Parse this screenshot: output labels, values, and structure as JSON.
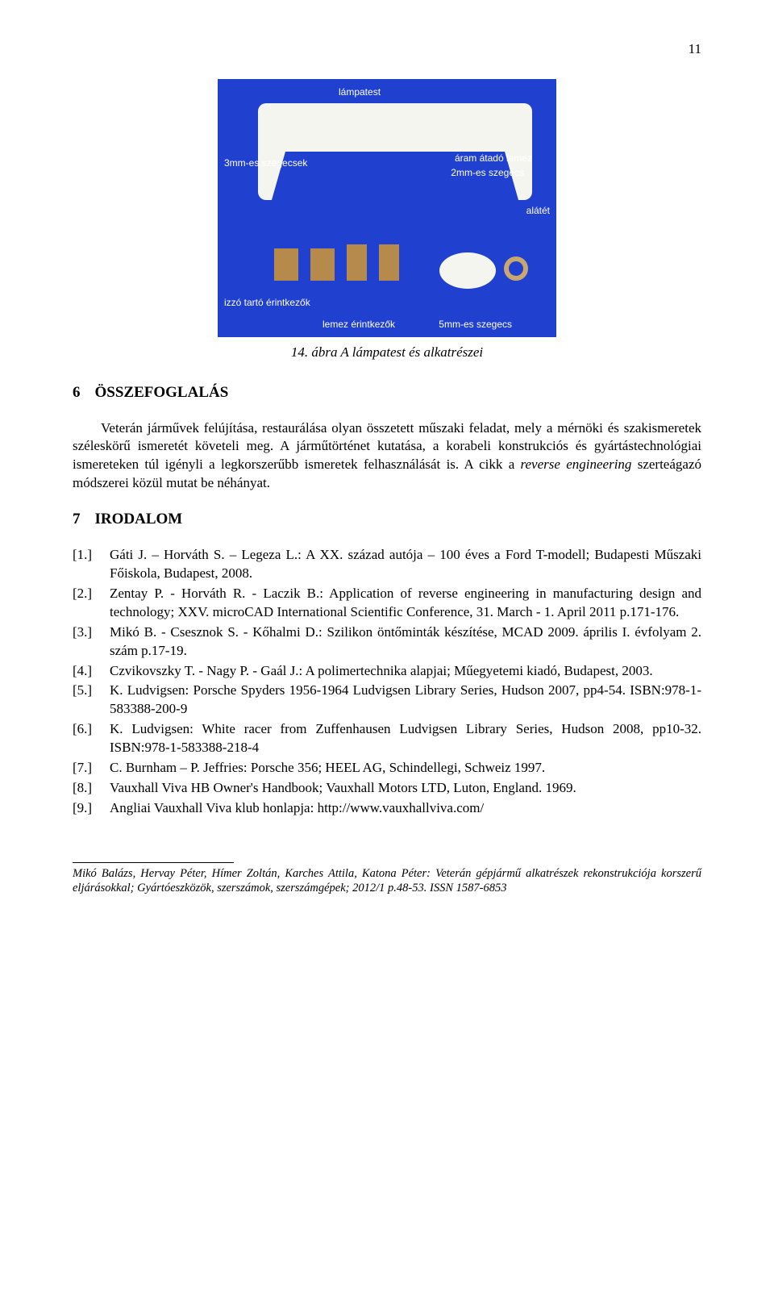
{
  "page_number": "11",
  "figure": {
    "labels": {
      "lampatest": "lámpatest",
      "szegecsek_3mm": "3mm-es szegecsek",
      "aram_atado": "áram átadó lemez",
      "szegecs_2mm": "2mm-es szegecs",
      "alatet": "alátét",
      "izzo_tarto": "izzó tartó érintkezők",
      "lemez_erintkezok": "lemez érintkezők",
      "szegecs_5mm": "5mm-es szegecs"
    },
    "caption": "14. ábra A lámpatest és alkatrészei",
    "bg_color": "#2040d0",
    "bracket_color": "#f5f5f0",
    "metal_color": "#b58a4a"
  },
  "section_summary": {
    "number": "6",
    "title": "ÖSSZEFOGLALÁS",
    "body": "Veterán járművek felújítása, restaurálása olyan összetett műszaki feladat, mely a mérnöki és szakismeretek széleskörű ismeretét követeli meg. A járműtörténet kutatása, a korabeli konstrukciós és gyártástechnológiai ismereteken túl igényli a legkorszerűbb ismeretek felhasználását is. A cikk a reverse engineering szerteágazó módszerei közül mutat be néhányat.",
    "italic_phrase": "reverse engineering"
  },
  "section_refs": {
    "number": "7",
    "title": "IRODALOM",
    "items": [
      {
        "key": "[1.]",
        "text": "Gáti J. – Horváth S. – Legeza L.: A XX. század autója – 100 éves a Ford T-modell; Budapesti Műszaki Főiskola, Budapest, 2008."
      },
      {
        "key": "[2.]",
        "text": "Zentay P. - Horváth R. - Laczik B.: Application of reverse engineering in manufacturing design and technology; XXV. microCAD International Scientific Conference, 31. March - 1. April 2011 p.171-176."
      },
      {
        "key": "[3.]",
        "text": "Mikó B. - Csesznok S. - Kőhalmi D.: Szilikon öntőminták készítése, MCAD 2009. április I. évfolyam 2. szám p.17-19."
      },
      {
        "key": "[4.]",
        "text": "Czvikovszky T. - Nagy P. - Gaál J.: A polimertechnika alapjai; Műegyetemi kiadó, Budapest, 2003."
      },
      {
        "key": "[5.]",
        "text": "K. Ludvigsen: Porsche Spyders 1956-1964 Ludvigsen Library Series, Hudson 2007, pp4-54. ISBN:978-1-583388-200-9"
      },
      {
        "key": "[6.]",
        "text": "K. Ludvigsen: White racer from Zuffenhausen Ludvigsen Library Series, Hudson 2008, pp10-32. ISBN:978-1-583388-218-4"
      },
      {
        "key": "[7.]",
        "text": "C. Burnham – P. Jeffries: Porsche 356; HEEL AG, Schindellegi, Schweiz 1997."
      },
      {
        "key": "[8.]",
        "text": "Vauxhall Viva HB Owner's Handbook; Vauxhall Motors LTD, Luton, England. 1969."
      },
      {
        "key": "[9.]",
        "text": "Angliai Vauxhall Viva klub honlapja: http://www.vauxhallviva.com/"
      }
    ]
  },
  "footer": "Mikó Balázs, Hervay Péter, Hímer Zoltán, Karches Attila, Katona Péter: Veterán gépjármű alkatrészek rekonstrukciója korszerű eljárásokkal; Gyártóeszközök, szerszámok, szerszámgépek; 2012/1 p.48-53. ISSN 1587-6853"
}
